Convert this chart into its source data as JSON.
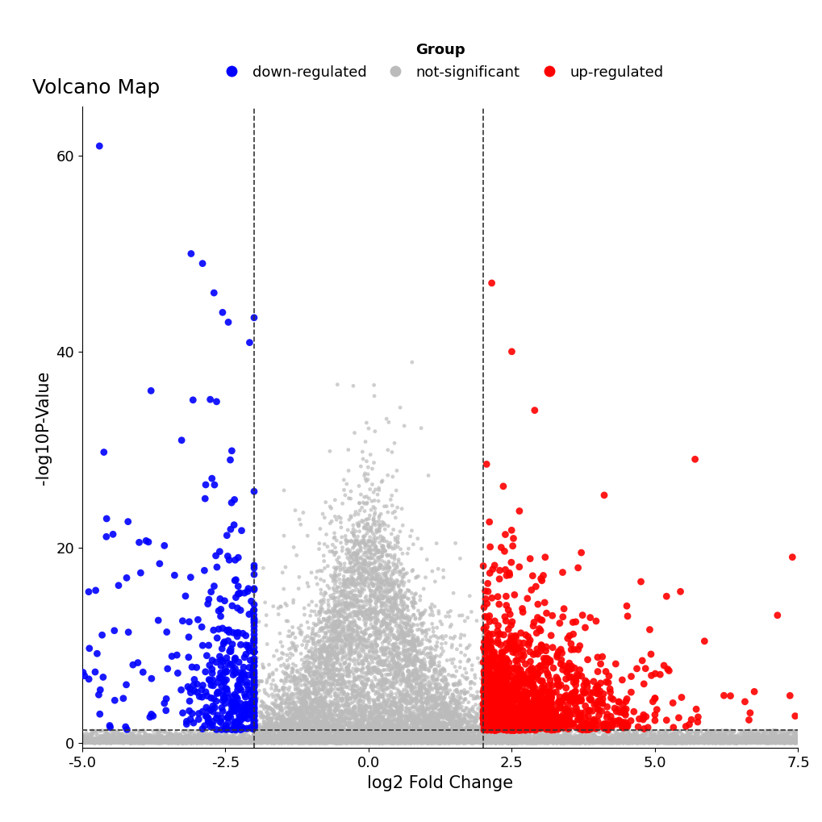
{
  "title": "Volcano Map",
  "xlabel": "log2 Fold Change",
  "ylabel": "-log10P-Value",
  "xlim": [
    -5.0,
    7.5
  ],
  "ylim": [
    -0.5,
    65
  ],
  "fc_threshold_up": 2.0,
  "fc_threshold_down": -2.0,
  "pvalue_threshold": 1.3,
  "color_up": "#FF0000",
  "color_down": "#0000FF",
  "color_ns": "#BBBBBB",
  "dot_size_ns": 12,
  "dot_size_sig": 40,
  "dot_alpha_ns": 0.7,
  "dot_alpha_sig": 0.9,
  "dashed_color": "#333333",
  "legend_labels": [
    "down-regulated",
    "not-significant",
    "up-regulated"
  ],
  "legend_colors": [
    "#0000FF",
    "#BBBBBB",
    "#FF0000"
  ],
  "seed": 42,
  "title_fontsize": 18,
  "axis_label_fontsize": 15,
  "tick_fontsize": 13,
  "legend_fontsize": 13,
  "legend_title_fontsize": 13
}
